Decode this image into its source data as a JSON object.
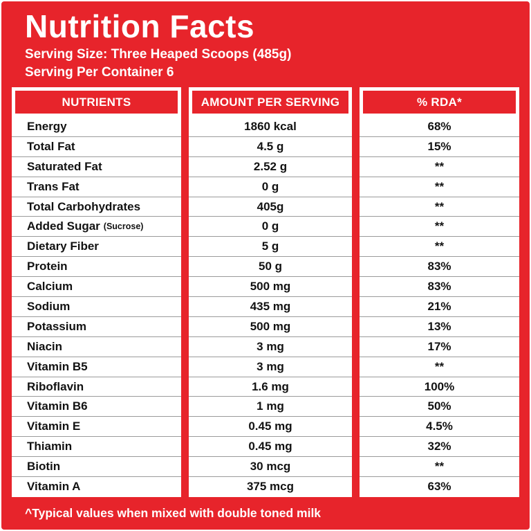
{
  "page": {
    "title": "Nutrition Facts",
    "serving_size": "Serving Size: Three Heaped Scoops (485g)",
    "serving_per_container": "Serving Per Container 6",
    "footnote": "^Typical values when mixed with double toned milk"
  },
  "colors": {
    "brand_red": "#E7242B",
    "table_text": "#121212",
    "row_divider": "#9a9a9a"
  },
  "table": {
    "columns": [
      "NUTRIENTS",
      "AMOUNT PER SERVING",
      "% RDA*"
    ],
    "rows": [
      {
        "nutrient": "Energy",
        "amount": "1860 kcal",
        "rda": "68%"
      },
      {
        "nutrient": "Total Fat",
        "amount": "4.5 g",
        "rda": "15%"
      },
      {
        "nutrient": "Saturated Fat",
        "amount": "2.52 g",
        "rda": "**"
      },
      {
        "nutrient": "Trans Fat",
        "amount": "0 g",
        "rda": "**"
      },
      {
        "nutrient": "Total Carbohydrates",
        "amount": "405g",
        "rda": "**"
      },
      {
        "nutrient": "Added Sugar",
        "note": "(Sucrose)",
        "amount": "0 g",
        "rda": "**"
      },
      {
        "nutrient": "Dietary Fiber",
        "amount": "5 g",
        "rda": "**"
      },
      {
        "nutrient": "Protein",
        "amount": "50 g",
        "rda": "83%"
      },
      {
        "nutrient": "Calcium",
        "amount": "500 mg",
        "rda": "83%"
      },
      {
        "nutrient": "Sodium",
        "amount": "435 mg",
        "rda": "21%"
      },
      {
        "nutrient": "Potassium",
        "amount": "500 mg",
        "rda": "13%"
      },
      {
        "nutrient": "Niacin",
        "amount": "3 mg",
        "rda": "17%"
      },
      {
        "nutrient": "Vitamin B5",
        "amount": "3 mg",
        "rda": "**"
      },
      {
        "nutrient": "Riboflavin",
        "amount": "1.6 mg",
        "rda": "100%"
      },
      {
        "nutrient": "Vitamin B6",
        "amount": "1 mg",
        "rda": "50%"
      },
      {
        "nutrient": "Vitamin E",
        "amount": "0.45 mg",
        "rda": "4.5%"
      },
      {
        "nutrient": "Thiamin",
        "amount": "0.45 mg",
        "rda": "32%"
      },
      {
        "nutrient": "Biotin",
        "amount": "30 mcg",
        "rda": "**"
      },
      {
        "nutrient": "Vitamin A",
        "amount": "375 mcg",
        "rda": "63%"
      }
    ]
  }
}
